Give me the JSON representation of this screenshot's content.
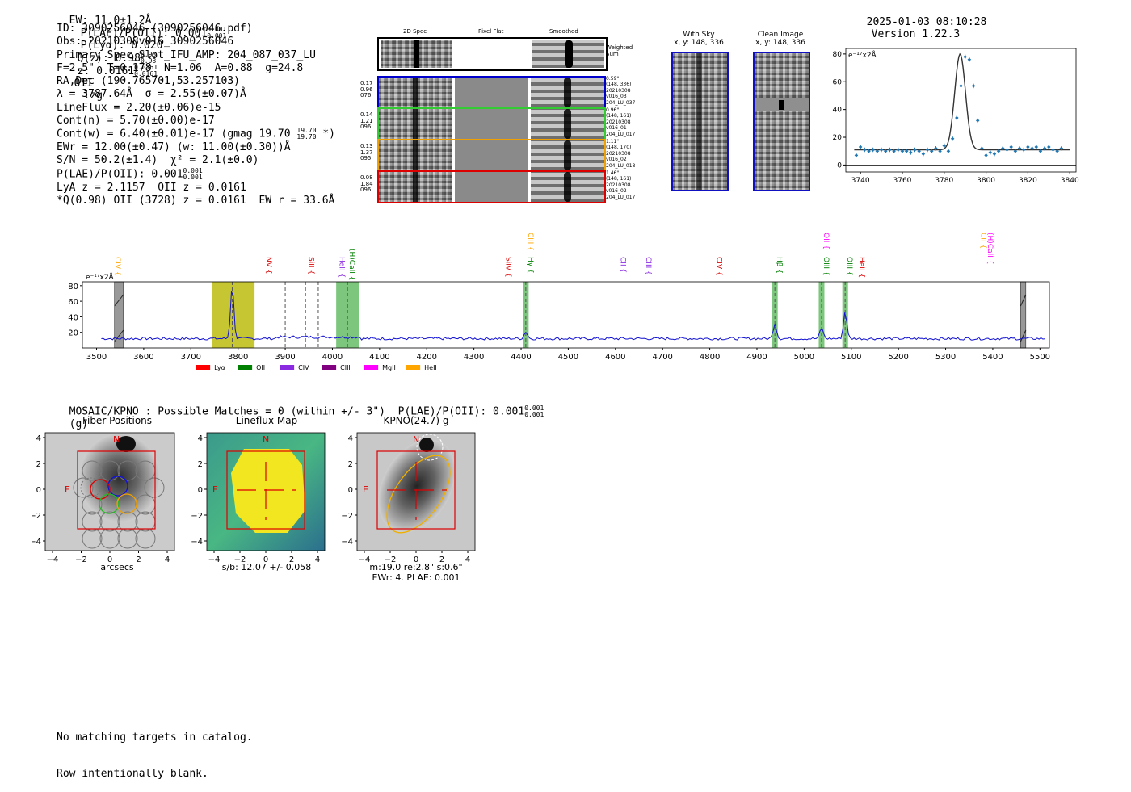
{
  "header": {
    "ew": "EW: 11.0±1.2Å",
    "plae_label": "P(LAE)/P(OII): 0.001",
    "plae_sup": "0.001",
    "plae_sub": "0.001",
    "plya": "P(Lyα): 0.020",
    "qz_label": "Q(z): 0.98",
    "qz_sup": "0.98",
    "qz_sub": "0.98",
    "z_label": "z: 0.0161",
    "z_sup": "0.0161",
    "z_sub": "0.0161",
    "line": "OII",
    "flags": "lzg",
    "timestamp": "2025-01-03 08:10:28",
    "version": "Version 1.22.3"
  },
  "info": {
    "id": "ID: 3090256046 (3090256046.pdf)",
    "obs": "Obs: 20210308v016_3090256046",
    "slot": "Primary Spec_Slot_IFU_AMP: 204_087_037_LU",
    "params": "F=2.5\"  T=0.178  N=1.06  A=0.88  g=24.8",
    "radec": "RA,Dec (190.765701,53.257103)",
    "lambda": "λ = 3787.64Å  σ = 2.55(±0.07)Å",
    "lineflux": "LineFlux = 2.20(±0.06)e-15",
    "contn": "Cont(n) = 5.70(±0.00)e-17",
    "contw": "Cont(w) = 6.40(±0.01)e-17 (gmag 19.70",
    "contw_sup": "19.70",
    "contw_sub": "19.70",
    "contw_end": "*)",
    "ewr": "EWr = 12.00(±0.47) (w: 11.00(±0.30))Å",
    "sn": "S/N = 50.2(±1.4)  χ² = 2.1(±0.0)",
    "plae": "P(LAE)/P(OII): 0.001",
    "plae_sup": "0.001",
    "plae_sub": "0.001",
    "lya": "LyA z = 2.1157  OII z = 0.0161",
    "q": "*Q(0.98) OII (3728) z = 0.0161  EW r = 33.6Å"
  },
  "spec2d": {
    "col_titles": [
      "2D Spec",
      "Pixel Flat",
      "Smoothed"
    ],
    "weighted_label": "Weighted Sum",
    "rows": [
      {
        "color": "#0000cc",
        "left": [
          "0.17",
          "0.96",
          "076"
        ],
        "right": [
          "0.59\"",
          "(148, 336)",
          "20210308",
          "v016_03",
          "204_LU_037"
        ]
      },
      {
        "color": "#33cc33",
        "left": [
          "0.14",
          "1.21",
          "096"
        ],
        "right": [
          "0.96\"",
          "(148, 161)",
          "20210308",
          "v016_01",
          "204_LU_017"
        ]
      },
      {
        "color": "#f0a000",
        "left": [
          "0.13",
          "1.37",
          "095"
        ],
        "right": [
          "1.11\"",
          "(148, 170)",
          "20210308",
          "v016_02",
          "204_LU_018"
        ]
      },
      {
        "color": "#dd0000",
        "left": [
          "0.08",
          "1.84",
          "096"
        ],
        "right": [
          "1.46\"",
          "(148, 161)",
          "20210308",
          "v016_02",
          "204_LU_017"
        ]
      }
    ]
  },
  "cutouts": {
    "with_sky": {
      "title": "With Sky",
      "coords": "x, y: 148, 336"
    },
    "clean": {
      "title": "Clean Image",
      "coords": "x, y: 148, 336"
    }
  },
  "line_fit": {
    "ylabel": "e⁻¹⁷x2Å",
    "xticks": [
      "3740",
      "3760",
      "3780",
      "3800",
      "3820",
      "3840"
    ],
    "yticks": [
      "0",
      "20",
      "40",
      "60",
      "80"
    ]
  },
  "full_spec": {
    "ylabel": "e⁻¹⁷x2Å",
    "xticks": [
      "3500",
      "3600",
      "3700",
      "3800",
      "3900",
      "4000",
      "4100",
      "4200",
      "4300",
      "4400",
      "4500",
      "4600",
      "4700",
      "4800",
      "4900",
      "5000",
      "5100",
      "5200",
      "5300",
      "5400",
      "5500"
    ],
    "yticks": [
      "20",
      "40",
      "60",
      "80"
    ],
    "legend": [
      {
        "label": "Lyα",
        "color": "#ff0000"
      },
      {
        "label": "OII",
        "color": "#008000"
      },
      {
        "label": "CIV",
        "color": "#8a2be2"
      },
      {
        "label": "CIII",
        "color": "#800080"
      },
      {
        "label": "MgII",
        "color": "#ff00ff"
      },
      {
        "label": "HeII",
        "color": "#ffa500"
      }
    ],
    "line_labels": [
      {
        "text": "CIV",
        "wave": 3535,
        "color": "#ffa500",
        "row": 1
      },
      {
        "text": "NV",
        "wave": 3855,
        "color": "#dd0000",
        "row": 1
      },
      {
        "text": "SiII",
        "wave": 3945,
        "color": "#dd0000",
        "row": 1
      },
      {
        "text": "HeII",
        "wave": 4010,
        "color": "#8a2be2",
        "row": 1
      },
      {
        "text": "(H)CaII",
        "wave": 4032,
        "color": "#008000",
        "row": 0
      },
      {
        "text": "CIII",
        "wave": 4410,
        "color": "#ffa500",
        "row": -1
      },
      {
        "text": "Hγ",
        "wave": 4410,
        "color": "#008000",
        "row": 1
      },
      {
        "text": "SiIV",
        "wave": 4363,
        "color": "#dd0000",
        "row": 1
      },
      {
        "text": "CII",
        "wave": 4606,
        "color": "#8a2be2",
        "row": 1
      },
      {
        "text": "CIII",
        "wave": 4660,
        "color": "#8a2be2",
        "row": 1
      },
      {
        "text": "CIV",
        "wave": 4810,
        "color": "#dd0000",
        "row": 1
      },
      {
        "text": "Hβ",
        "wave": 4938,
        "color": "#008000",
        "row": 1
      },
      {
        "text": "OII",
        "wave": 5037,
        "color": "#ff00ff",
        "row": -1
      },
      {
        "text": "OIII",
        "wave": 5037,
        "color": "#008000",
        "row": 1
      },
      {
        "text": "OIII",
        "wave": 5087,
        "color": "#008000",
        "row": 1
      },
      {
        "text": "HeII",
        "wave": 5112,
        "color": "#dd0000",
        "row": 1
      },
      {
        "text": "CII",
        "wave": 5370,
        "color": "#ffa500",
        "row": -1
      },
      {
        "text": "(H)CaII",
        "wave": 5385,
        "color": "#ff00ff",
        "row": -1
      }
    ]
  },
  "catalog_header": "MOSAIC/KPNO : Possible Matches = 0 (within +/- 3\")  P(LAE)/P(OII): 0.001",
  "catalog_sup": "0.001",
  "catalog_sub": "0.001",
  "catalog_band": "(g)",
  "panels": {
    "fiber": {
      "title": "Fiber Positions",
      "xlabel": "arcsecs"
    },
    "lineflux": {
      "title": "Lineflux Map",
      "xlabel": "s/b: 12.07 +/- 0.058"
    },
    "kpno": {
      "title": "KPNO(24.7) g",
      "xlabel": "m:19.0  re:2.8\"  s:0.6\"",
      "xlabel2": "EWr: 4. PLAE: 0.001"
    },
    "ticks": [
      "−4",
      "−2",
      "0",
      "2",
      "4"
    ],
    "yticks": [
      "4",
      "2",
      "0",
      "−2",
      "−4"
    ],
    "n_label": "N",
    "e_label": "E"
  },
  "footer": {
    "line1": "No matching targets in catalog.",
    "line2": "Row intentionally blank."
  },
  "chart_data": [
    {
      "type": "scatter",
      "title": "",
      "xlabel": "",
      "ylabel": "e⁻¹⁷x2Å",
      "xlim": [
        3733,
        3843
      ],
      "ylim": [
        -5,
        84
      ],
      "x": [
        3738,
        3740,
        3742,
        3744,
        3746,
        3748,
        3750,
        3752,
        3754,
        3756,
        3758,
        3760,
        3762,
        3764,
        3766,
        3768,
        3770,
        3772,
        3774,
        3776,
        3778,
        3780,
        3782,
        3784,
        3786,
        3788,
        3790,
        3792,
        3794,
        3796,
        3798,
        3800,
        3802,
        3804,
        3806,
        3808,
        3810,
        3812,
        3814,
        3816,
        3818,
        3820,
        3822,
        3824,
        3826,
        3828,
        3830,
        3832,
        3834,
        3836
      ],
      "y": [
        7,
        13,
        11,
        10,
        11,
        10,
        11,
        10,
        11,
        10,
        11,
        10,
        10,
        9,
        11,
        10,
        8,
        11,
        10,
        12,
        10,
        14,
        10,
        19,
        34,
        57,
        78,
        76,
        57,
        32,
        12,
        7,
        9,
        8,
        10,
        12,
        11,
        13,
        10,
        12,
        11,
        13,
        12,
        13,
        10,
        12,
        13,
        11,
        10,
        12
      ],
      "fit": {
        "continuum": 11,
        "center": 3787.6,
        "amp": 69,
        "sigma": 2.55
      }
    },
    {
      "type": "line",
      "title": "",
      "xlabel": "",
      "ylabel": "e⁻¹⁷x2Å",
      "xlim": [
        3470,
        5520
      ],
      "ylim": [
        0,
        85
      ],
      "baseline": 12,
      "peaks": [
        {
          "wave": 3787.6,
          "height": 80
        },
        {
          "wave": 4410,
          "height": 21
        },
        {
          "wave": 4938,
          "height": 32
        },
        {
          "wave": 5037,
          "height": 26
        },
        {
          "wave": 5087,
          "height": 47
        }
      ],
      "highlight_regions": [
        {
          "start": 3745,
          "end": 3835,
          "color": "#b8b800"
        },
        {
          "start": 4008,
          "end": 4057,
          "color": "#5cb85c"
        },
        {
          "start": 4404,
          "end": 4416,
          "color": "#5cb85c"
        },
        {
          "start": 4932,
          "end": 4944,
          "color": "#5cb85c"
        },
        {
          "start": 5031,
          "end": 5043,
          "color": "#5cb85c"
        },
        {
          "start": 5081,
          "end": 5093,
          "color": "#5cb85c"
        }
      ],
      "masked_regions": [
        {
          "start": 3538,
          "end": 3557
        },
        {
          "start": 5459,
          "end": 5470
        }
      ],
      "dashed_lines": [
        3787.6,
        3900,
        3943,
        3970,
        4032,
        4410,
        4938,
        5037,
        5087
      ]
    }
  ]
}
